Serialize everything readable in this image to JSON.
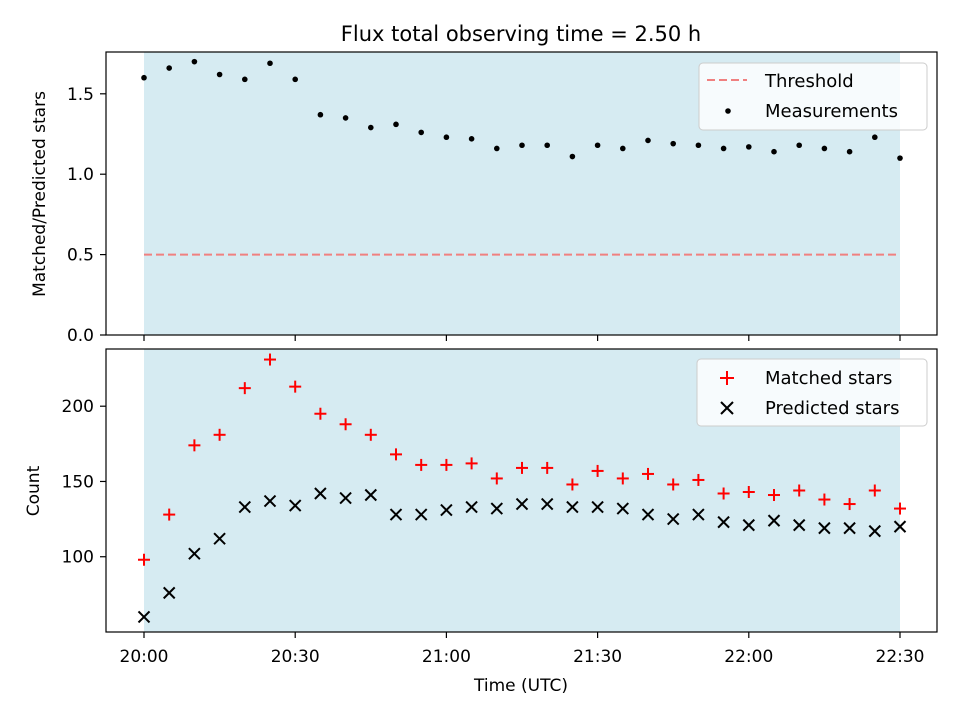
{
  "chart_data": [
    {
      "type": "scatter",
      "title": "Flux total observing time = 2.50 h",
      "xlabel": "",
      "ylabel": "Matched/Predicted stars",
      "ylim": [
        0,
        1.76
      ],
      "yticks": [
        "0.0",
        "0.5",
        "1.0",
        "1.5"
      ],
      "ytick_values": [
        0,
        0.5,
        1.0,
        1.5
      ],
      "x": [
        "20:00",
        "20:05",
        "20:10",
        "20:15",
        "20:20",
        "20:25",
        "20:30",
        "20:35",
        "20:40",
        "20:45",
        "20:50",
        "20:55",
        "21:00",
        "21:05",
        "21:10",
        "21:15",
        "21:20",
        "21:25",
        "21:30",
        "21:35",
        "21:40",
        "21:45",
        "21:50",
        "21:55",
        "22:00",
        "22:05",
        "22:10",
        "22:15",
        "22:20",
        "22:25",
        "22:30"
      ],
      "threshold": {
        "name": "Threshold",
        "value": 0.5,
        "color": "#f08080"
      },
      "series": [
        {
          "name": "Measurements",
          "color": "#000000",
          "values": [
            1.6,
            1.66,
            1.7,
            1.62,
            1.59,
            1.69,
            1.59,
            1.37,
            1.35,
            1.29,
            1.31,
            1.26,
            1.23,
            1.22,
            1.16,
            1.18,
            1.18,
            1.11,
            1.18,
            1.16,
            1.21,
            1.19,
            1.18,
            1.16,
            1.17,
            1.14,
            1.18,
            1.16,
            1.14,
            1.23,
            1.1
          ]
        }
      ],
      "shaded_region": {
        "from": "20:00",
        "to": "22:30",
        "color": "#add8e6"
      },
      "legend": "top-right"
    },
    {
      "type": "scatter",
      "title": "",
      "xlabel": "Time (UTC)",
      "ylabel": "Count",
      "ylim": [
        50,
        238
      ],
      "yticks": [
        "100",
        "150",
        "200"
      ],
      "ytick_values": [
        100,
        150,
        200
      ],
      "xticks": [
        "20:00",
        "20:30",
        "21:00",
        "21:30",
        "22:00",
        "22:30"
      ],
      "x": [
        "20:00",
        "20:05",
        "20:10",
        "20:15",
        "20:20",
        "20:25",
        "20:30",
        "20:35",
        "20:40",
        "20:45",
        "20:50",
        "20:55",
        "21:00",
        "21:05",
        "21:10",
        "21:15",
        "21:20",
        "21:25",
        "21:30",
        "21:35",
        "21:40",
        "21:45",
        "21:50",
        "21:55",
        "22:00",
        "22:05",
        "22:10",
        "22:15",
        "22:20",
        "22:25",
        "22:30"
      ],
      "series": [
        {
          "name": "Matched stars",
          "marker": "plus",
          "color": "#ff0000",
          "values": [
            98,
            128,
            174,
            181,
            212,
            231,
            213,
            195,
            188,
            181,
            168,
            161,
            161,
            162,
            152,
            159,
            159,
            148,
            157,
            152,
            155,
            148,
            151,
            142,
            143,
            141,
            144,
            138,
            135,
            144,
            132
          ]
        },
        {
          "name": "Predicted stars",
          "marker": "x",
          "color": "#000000",
          "values": [
            60,
            76,
            102,
            112,
            133,
            137,
            134,
            142,
            139,
            141,
            128,
            128,
            131,
            133,
            132,
            135,
            135,
            133,
            133,
            132,
            128,
            125,
            128,
            123,
            121,
            124,
            121,
            119,
            119,
            117,
            120
          ]
        }
      ],
      "shaded_region": {
        "from": "20:00",
        "to": "22:30",
        "color": "#add8e6"
      },
      "legend": "top-right"
    }
  ]
}
